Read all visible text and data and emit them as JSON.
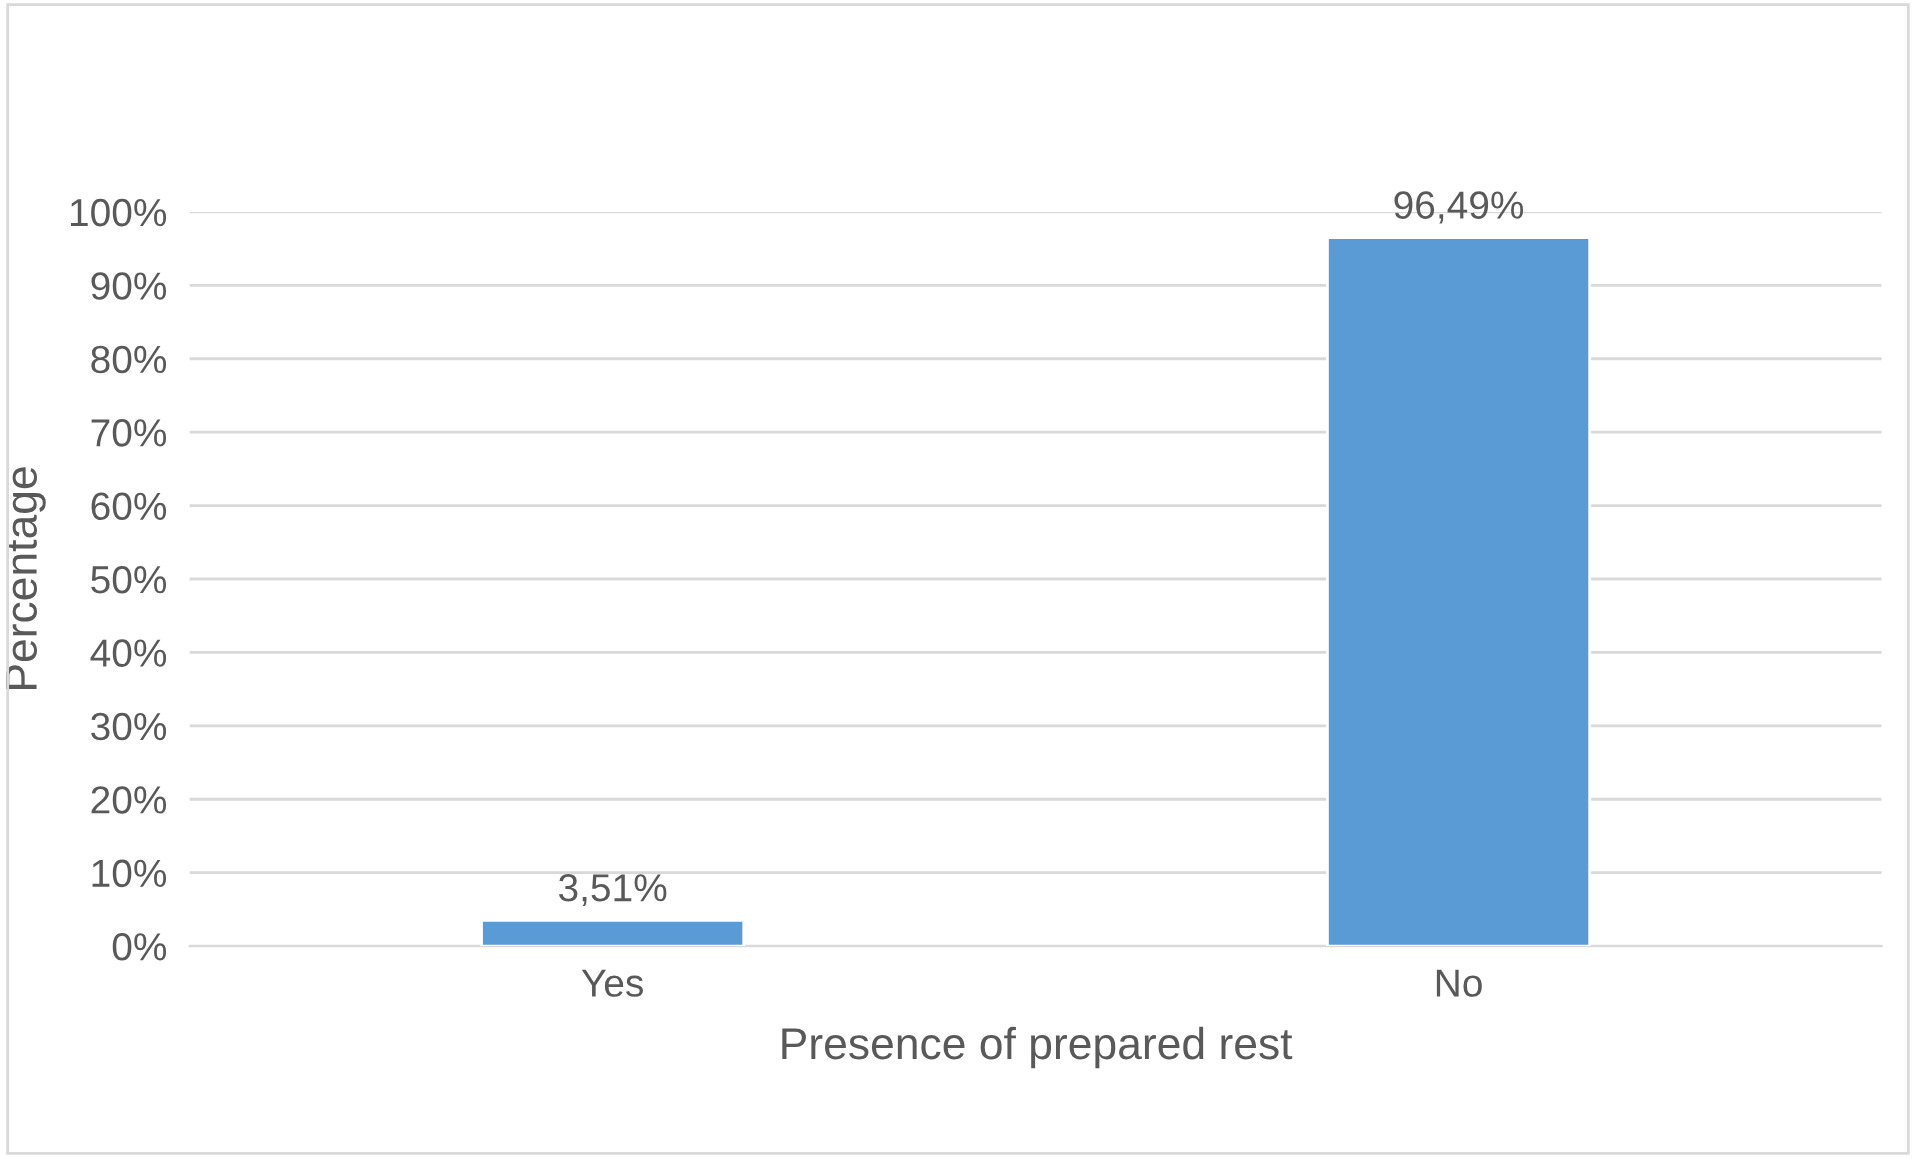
{
  "chart_data": {
    "type": "bar",
    "xlabel": "Presence of prepared rest",
    "ylabel": "Percentage",
    "categories": [
      "Yes",
      "No"
    ],
    "values": [
      3.51,
      96.49
    ],
    "value_labels": [
      "3,51%",
      "96,49%"
    ],
    "color": "#5b9bd5",
    "ylim": [
      0,
      100
    ],
    "yticks": [
      {
        "value": 0,
        "label": "0%"
      },
      {
        "value": 10,
        "label": "10%"
      },
      {
        "value": 20,
        "label": "20%"
      },
      {
        "value": 30,
        "label": "30%"
      },
      {
        "value": 40,
        "label": "40%"
      },
      {
        "value": 50,
        "label": "50%"
      },
      {
        "value": 60,
        "label": "60%"
      },
      {
        "value": 70,
        "label": "70%"
      },
      {
        "value": 80,
        "label": "80%"
      },
      {
        "value": 90,
        "label": "90%"
      },
      {
        "value": 100,
        "label": "100%"
      }
    ],
    "grid": "y"
  }
}
